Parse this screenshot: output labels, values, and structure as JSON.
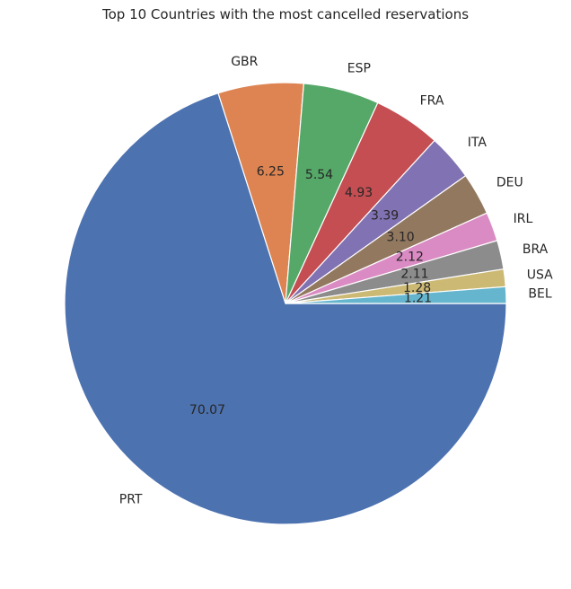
{
  "chart_data": {
    "type": "pie",
    "title": "Top 10 Countries with the most cancelled reservations",
    "categories": [
      "PRT",
      "GBR",
      "ESP",
      "FRA",
      "ITA",
      "DEU",
      "IRL",
      "BRA",
      "USA",
      "BEL"
    ],
    "values": [
      70.07,
      6.25,
      5.54,
      4.93,
      3.39,
      3.1,
      2.12,
      2.11,
      1.28,
      1.21
    ],
    "value_labels": [
      "70.07",
      "6.25",
      "5.54",
      "4.93",
      "3.39",
      "3.10",
      "2.12",
      "2.11",
      "1.28",
      "1.21"
    ],
    "colors": [
      "#4c72b0",
      "#dd8452",
      "#55a868",
      "#c44e52",
      "#8172b3",
      "#937860",
      "#da8bc3",
      "#8c8c8c",
      "#ccb974",
      "#64b5cd"
    ],
    "start_angle": 0,
    "direction": "clockwise",
    "legend": "none"
  }
}
